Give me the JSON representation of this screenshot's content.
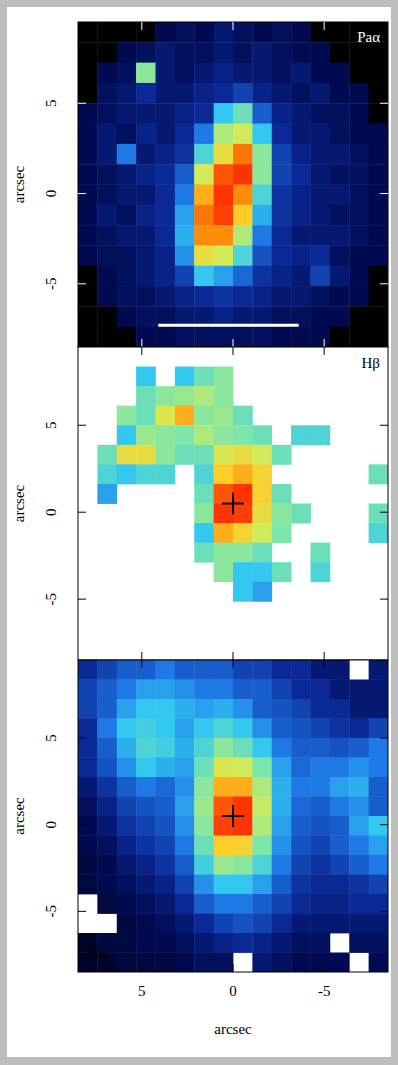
{
  "chart_data": [
    {
      "type": "heatmap",
      "label": "Paα",
      "y_label": "arcsec",
      "xlim": [
        8.5,
        -8.5
      ],
      "ylim": [
        -8.5,
        9.5
      ],
      "xticks": [
        5,
        0,
        -5
      ],
      "yticks": [
        -5,
        0,
        5
      ],
      "tick_labels": "y",
      "zlim": [
        0,
        1
      ],
      "scale_bar": {
        "x": [
          4.1,
          -3.6
        ],
        "y": -7.3
      },
      "cells": [
        [
          0,
          0,
          0,
          0,
          0.1,
          0.12,
          0.1,
          0.15,
          0.12,
          0.1,
          0.12,
          0.1,
          0,
          0,
          0,
          0
        ],
        [
          0,
          0,
          0.1,
          0.12,
          0.15,
          0.12,
          0.12,
          0.15,
          0.12,
          0.15,
          0.12,
          0.1,
          0.1,
          0,
          0,
          0
        ],
        [
          0,
          0.1,
          0.12,
          0.6,
          0.15,
          0.12,
          0.15,
          0.18,
          0.15,
          0.15,
          0.12,
          0.15,
          0.1,
          0.1,
          0,
          0
        ],
        [
          0,
          0.12,
          0.15,
          0.2,
          0.15,
          0.15,
          0.18,
          0.2,
          0.25,
          0.18,
          0.15,
          0.12,
          0.15,
          0.1,
          0.1,
          0
        ],
        [
          0.1,
          0.12,
          0.15,
          0.15,
          0.15,
          0.18,
          0.2,
          0.45,
          0.55,
          0.3,
          0.18,
          0.15,
          0.12,
          0.12,
          0.1,
          0
        ],
        [
          0.1,
          0.15,
          0.12,
          0.18,
          0.15,
          0.2,
          0.35,
          0.65,
          0.7,
          0.45,
          0.2,
          0.15,
          0.15,
          0.12,
          0.1,
          0.1
        ],
        [
          0.1,
          0.15,
          0.35,
          0.15,
          0.18,
          0.22,
          0.5,
          0.75,
          0.92,
          0.6,
          0.25,
          0.18,
          0.15,
          0.15,
          0.12,
          0.1
        ],
        [
          0.1,
          0.12,
          0.15,
          0.18,
          0.2,
          0.3,
          0.7,
          0.95,
          0.98,
          0.6,
          0.25,
          0.2,
          0.15,
          0.12,
          0.12,
          0.1
        ],
        [
          0.1,
          0.12,
          0.15,
          0.15,
          0.2,
          0.35,
          0.85,
          0.98,
          0.9,
          0.5,
          0.22,
          0.18,
          0.15,
          0.15,
          0.12,
          0.1
        ],
        [
          0.1,
          0.15,
          0.12,
          0.18,
          0.2,
          0.4,
          0.92,
          0.97,
          0.8,
          0.42,
          0.22,
          0.18,
          0.15,
          0.12,
          0.12,
          0.1
        ],
        [
          0.1,
          0.12,
          0.15,
          0.15,
          0.2,
          0.42,
          0.9,
          0.9,
          0.65,
          0.35,
          0.2,
          0.15,
          0.15,
          0.15,
          0.12,
          0.1
        ],
        [
          0.1,
          0.12,
          0.12,
          0.15,
          0.18,
          0.38,
          0.75,
          0.7,
          0.5,
          0.28,
          0.2,
          0.18,
          0.2,
          0.12,
          0.1,
          0.1
        ],
        [
          0,
          0.1,
          0.12,
          0.15,
          0.18,
          0.25,
          0.45,
          0.4,
          0.32,
          0.22,
          0.18,
          0.15,
          0.25,
          0.15,
          0.1,
          0
        ],
        [
          0,
          0.1,
          0.12,
          0.12,
          0.15,
          0.18,
          0.2,
          0.22,
          0.2,
          0.18,
          0.15,
          0.15,
          0.12,
          0.1,
          0.1,
          0
        ],
        [
          0,
          0,
          0.1,
          0.12,
          0.12,
          0.15,
          0.15,
          0.18,
          0.15,
          0.15,
          0.12,
          0.12,
          0.1,
          0.1,
          0,
          0
        ],
        [
          0,
          0,
          0,
          0.1,
          0.1,
          0.12,
          0.12,
          0.12,
          0.12,
          0.12,
          0.1,
          0.1,
          0.1,
          0,
          0,
          0
        ]
      ]
    },
    {
      "type": "heatmap",
      "label": "Hβ",
      "y_label": "arcsec",
      "xlim": [
        8.5,
        -8.5
      ],
      "ylim": [
        -8.5,
        9.5
      ],
      "xticks": [
        5,
        0,
        -5
      ],
      "yticks": [
        -5,
        0,
        5
      ],
      "tick_labels": "y",
      "zlim": [
        0,
        1
      ],
      "center": {
        "x": 0,
        "y": 0.5
      },
      "cells": [
        [
          null,
          null,
          null,
          null,
          null,
          null,
          null,
          null,
          null,
          null,
          null,
          null,
          null,
          null,
          null,
          null
        ],
        [
          null,
          null,
          null,
          0.45,
          null,
          0.45,
          0.55,
          0.6,
          null,
          null,
          null,
          null,
          null,
          null,
          null,
          null
        ],
        [
          null,
          null,
          null,
          0.55,
          0.6,
          0.62,
          0.65,
          0.6,
          null,
          null,
          null,
          null,
          null,
          null,
          null,
          null
        ],
        [
          null,
          null,
          0.6,
          0.55,
          0.72,
          0.85,
          0.6,
          0.62,
          0.55,
          null,
          null,
          null,
          null,
          null,
          null,
          null
        ],
        [
          null,
          null,
          0.45,
          0.62,
          0.6,
          0.58,
          0.65,
          0.6,
          0.58,
          0.55,
          null,
          0.5,
          0.5,
          null,
          null,
          null
        ],
        [
          null,
          0.55,
          0.75,
          0.75,
          0.6,
          0.55,
          0.55,
          0.72,
          0.75,
          0.7,
          0.55,
          null,
          null,
          null,
          null,
          null
        ],
        [
          null,
          0.5,
          0.45,
          0.5,
          0.5,
          null,
          0.5,
          0.8,
          0.85,
          0.78,
          null,
          null,
          null,
          null,
          null,
          0.55
        ],
        [
          null,
          0.4,
          null,
          null,
          null,
          null,
          0.55,
          0.95,
          0.98,
          0.78,
          0.55,
          null,
          null,
          null,
          null,
          null
        ],
        [
          null,
          null,
          null,
          null,
          null,
          null,
          0.6,
          0.98,
          0.97,
          0.75,
          0.6,
          0.55,
          null,
          null,
          null,
          0.55
        ],
        [
          null,
          null,
          null,
          null,
          null,
          null,
          0.45,
          0.85,
          0.78,
          0.7,
          0.58,
          null,
          null,
          null,
          null,
          0.5
        ],
        [
          null,
          null,
          null,
          null,
          null,
          null,
          0.55,
          0.6,
          0.6,
          0.55,
          null,
          null,
          0.55,
          null,
          null,
          null
        ],
        [
          null,
          null,
          null,
          null,
          null,
          null,
          null,
          0.6,
          0.45,
          0.45,
          0.55,
          null,
          0.5,
          null,
          null,
          null
        ],
        [
          null,
          null,
          null,
          null,
          null,
          null,
          null,
          null,
          0.45,
          0.4,
          null,
          null,
          null,
          null,
          null,
          null
        ],
        [
          null,
          null,
          null,
          null,
          null,
          null,
          null,
          null,
          null,
          null,
          null,
          null,
          null,
          null,
          null,
          null
        ],
        [
          null,
          null,
          null,
          null,
          null,
          null,
          null,
          null,
          null,
          null,
          null,
          null,
          null,
          null,
          null,
          null
        ],
        [
          null,
          null,
          null,
          null,
          null,
          null,
          null,
          null,
          null,
          null,
          null,
          null,
          null,
          null,
          null,
          null
        ]
      ]
    },
    {
      "type": "heatmap",
      "label": "Hα",
      "y_label": "arcsec",
      "x_label": "arcsec",
      "xlim": [
        8.5,
        -8.5
      ],
      "ylim": [
        -8.5,
        9.5
      ],
      "xticks": [
        5,
        0,
        -5
      ],
      "yticks": [
        -5,
        0,
        5
      ],
      "zlim": [
        0,
        1
      ],
      "center": {
        "x": 0,
        "y": 0.5
      },
      "cells": [
        [
          0.2,
          0.25,
          0.3,
          0.3,
          0.35,
          0.3,
          0.3,
          0.3,
          0.25,
          0.25,
          0.2,
          0.2,
          0.15,
          0.15,
          null,
          0.15
        ],
        [
          0.25,
          0.3,
          0.35,
          0.4,
          0.4,
          0.38,
          0.35,
          0.35,
          0.3,
          0.3,
          0.25,
          0.2,
          0.2,
          0.15,
          0.15,
          0.15
        ],
        [
          0.25,
          0.3,
          0.4,
          0.45,
          0.45,
          0.42,
          0.4,
          0.42,
          0.38,
          0.3,
          0.28,
          0.25,
          0.2,
          0.2,
          0.15,
          0.15
        ],
        [
          0.2,
          0.35,
          0.45,
          0.48,
          0.45,
          0.4,
          0.45,
          0.5,
          0.45,
          0.38,
          0.3,
          0.28,
          0.25,
          0.22,
          0.2,
          0.25
        ],
        [
          0.2,
          0.3,
          0.42,
          0.5,
          0.48,
          0.42,
          0.5,
          0.6,
          0.55,
          0.45,
          0.35,
          0.3,
          0.3,
          0.28,
          0.3,
          0.35
        ],
        [
          0.2,
          0.28,
          0.38,
          0.45,
          0.42,
          0.4,
          0.55,
          0.72,
          0.7,
          0.58,
          0.4,
          0.32,
          0.35,
          0.35,
          0.38,
          0.35
        ],
        [
          0.15,
          0.22,
          0.3,
          0.35,
          0.32,
          0.38,
          0.6,
          0.85,
          0.85,
          0.65,
          0.42,
          0.35,
          0.35,
          0.4,
          0.42,
          0.3
        ],
        [
          0.12,
          0.18,
          0.25,
          0.28,
          0.3,
          0.4,
          0.62,
          0.95,
          0.98,
          0.68,
          0.42,
          0.32,
          0.3,
          0.35,
          0.38,
          0.3
        ],
        [
          0.1,
          0.15,
          0.22,
          0.25,
          0.28,
          0.38,
          0.6,
          0.97,
          0.98,
          0.65,
          0.4,
          0.3,
          0.28,
          0.3,
          0.4,
          0.45
        ],
        [
          0.1,
          0.12,
          0.18,
          0.22,
          0.25,
          0.35,
          0.55,
          0.8,
          0.78,
          0.58,
          0.38,
          0.28,
          0.25,
          0.3,
          0.35,
          0.4
        ],
        [
          0.08,
          0.1,
          0.15,
          0.18,
          0.22,
          0.3,
          0.48,
          0.62,
          0.6,
          0.5,
          0.35,
          0.25,
          0.22,
          0.25,
          0.3,
          0.35
        ],
        [
          0.08,
          0.1,
          0.12,
          0.15,
          0.18,
          0.25,
          0.38,
          0.45,
          0.45,
          0.4,
          0.3,
          0.22,
          0.2,
          0.2,
          0.22,
          0.25
        ],
        [
          null,
          0.08,
          0.1,
          0.12,
          0.15,
          0.2,
          0.3,
          0.35,
          0.35,
          0.3,
          0.25,
          0.2,
          0.18,
          0.18,
          0.2,
          0.2
        ],
        [
          null,
          null,
          0.08,
          0.1,
          0.12,
          0.15,
          0.2,
          0.25,
          0.28,
          0.25,
          0.2,
          0.15,
          0.15,
          0.15,
          0.15,
          0.15
        ],
        [
          0.05,
          0.08,
          0.08,
          0.1,
          0.1,
          0.12,
          0.15,
          0.18,
          0.2,
          0.18,
          0.15,
          0.12,
          0.12,
          null,
          0.12,
          0.12
        ],
        [
          0.05,
          0.05,
          0.08,
          0.08,
          0.08,
          0.1,
          0.12,
          0.12,
          null,
          0.15,
          0.12,
          0.1,
          0.1,
          0.1,
          null,
          0.1
        ]
      ]
    }
  ]
}
